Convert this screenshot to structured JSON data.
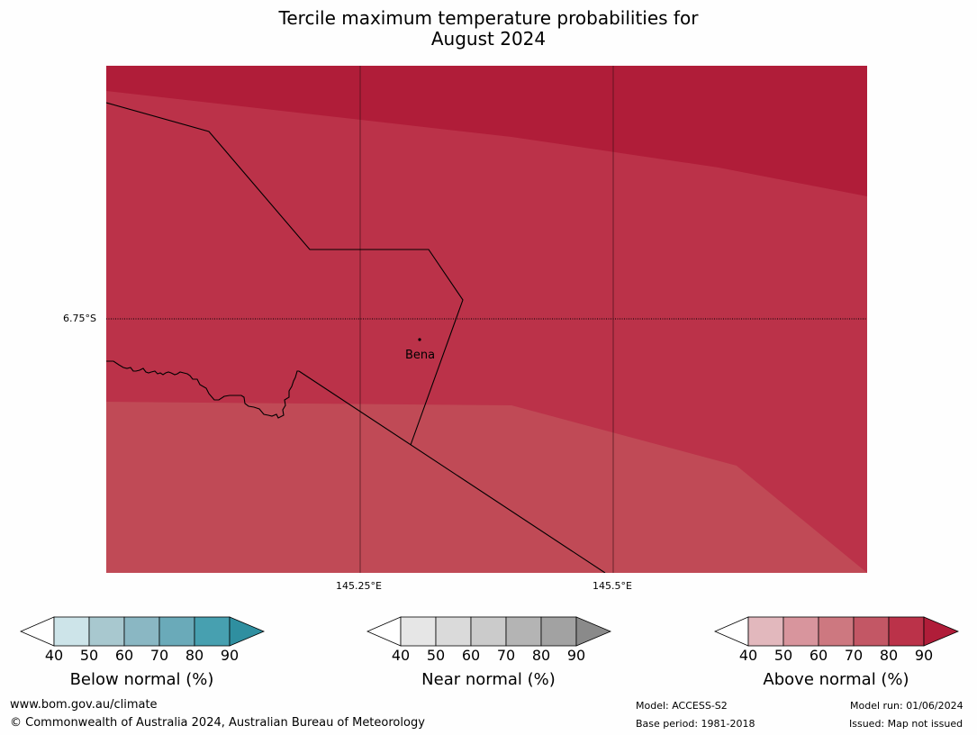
{
  "title": {
    "line1": "Tercile maximum temperature probabilities for",
    "line2": "August 2024"
  },
  "map": {
    "lat_label": "6.75°S",
    "lon_labels": [
      "145.25°E",
      "145.5°E"
    ],
    "place": "Bena",
    "fill_colors": {
      "band90": "#b01d39",
      "band80": "#bb3249",
      "band70": "#c04a56"
    }
  },
  "colorbars": [
    {
      "title": "Below normal (%)",
      "ticks": [
        "40",
        "50",
        "60",
        "70",
        "80",
        "90"
      ],
      "colors": [
        "#ffffff",
        "#cde4e9",
        "#a8c8cf",
        "#8ab7c3",
        "#6aaab9",
        "#47a0b0",
        "#2f8fa0"
      ]
    },
    {
      "title": "Near normal (%)",
      "ticks": [
        "40",
        "50",
        "60",
        "70",
        "80",
        "90"
      ],
      "colors": [
        "#ffffff",
        "#e6e6e6",
        "#dadada",
        "#cbcbcb",
        "#b4b4b4",
        "#a2a2a2",
        "#8a8a8a"
      ]
    },
    {
      "title": "Above normal (%)",
      "ticks": [
        "40",
        "50",
        "60",
        "70",
        "80",
        "90"
      ],
      "colors": [
        "#ffffff",
        "#e2b8bd",
        "#d8959d",
        "#cd7880",
        "#c35765",
        "#bb3249",
        "#b01d39"
      ]
    }
  ],
  "footer": {
    "url": "www.bom.gov.au/climate",
    "copyright": "© Commonwealth of Australia 2024, Australian Bureau of Meteorology",
    "model": "Model: ACCESS-S2",
    "base_period": "Base period: 1981-2018",
    "model_run": "Model run: 01/06/2024",
    "issued": "Issued: Map not issued"
  }
}
